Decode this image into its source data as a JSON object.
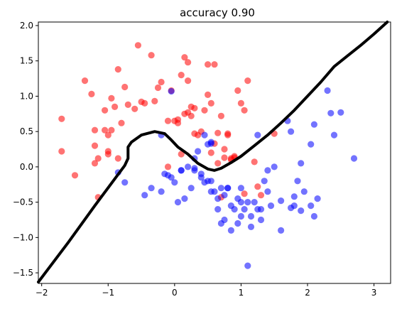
{
  "chart_data": {
    "type": "scatter",
    "title": "accuracy 0.90",
    "xlabel": "",
    "ylabel": "",
    "xlim": [
      -2.05,
      3.25
    ],
    "ylim": [
      -1.65,
      2.05
    ],
    "xticks": [
      -2,
      -1,
      0,
      1,
      2,
      3
    ],
    "yticks": [
      -1.5,
      -1.0,
      -0.5,
      0.0,
      0.5,
      1.0,
      1.5,
      2.0
    ],
    "xtick_labels": [
      "−2",
      "−1",
      "0",
      "1",
      "2",
      "3"
    ],
    "ytick_labels": [
      "−1.5",
      "−1.0",
      "−0.5",
      "0.0",
      "0.5",
      "1.0",
      "1.5",
      "2.0"
    ],
    "grid": false,
    "series": [
      {
        "color": "#ff0000",
        "x": [
          -1.7,
          -1.7,
          -1.5,
          -1.35,
          -1.25,
          -1.2,
          -1.2,
          -1.15,
          -1.05,
          -1.05,
          -1.0,
          -1.0,
          -0.95,
          -0.95,
          -0.9,
          -0.85,
          -0.8,
          -0.75,
          -0.7,
          -0.6,
          -0.55,
          -0.5,
          -0.45,
          -0.35,
          -0.3,
          -0.25,
          -0.2,
          -0.1,
          0.05,
          0.05,
          0.1,
          0.15,
          0.2,
          0.2,
          0.25,
          0.3,
          0.35,
          0.45,
          0.5,
          0.55,
          0.6,
          0.65,
          0.7,
          0.75,
          0.8,
          0.85,
          0.9,
          0.95,
          1.0,
          1.05,
          1.1,
          1.2,
          0.6,
          0.5,
          0.3,
          0.15,
          0.0,
          -0.05,
          0.65,
          0.75,
          0.85,
          0.9,
          -0.1,
          -1.15,
          -1.2,
          -1.0,
          -0.85,
          0.4,
          0.55,
          0.25,
          1.3,
          1.05,
          0.7,
          0.8,
          1.5,
          1.25,
          0.1,
          0.2
        ],
        "y": [
          0.68,
          0.22,
          -0.12,
          1.22,
          1.03,
          0.52,
          0.3,
          -0.43,
          0.8,
          0.52,
          0.45,
          0.22,
          0.97,
          0.52,
          0.85,
          1.38,
          0.62,
          1.13,
          0.88,
          0.82,
          1.72,
          0.92,
          0.9,
          1.58,
          0.93,
          1.12,
          1.2,
          0.65,
          0.67,
          0.62,
          1.3,
          1.55,
          1.48,
          1.22,
          0.85,
          0.47,
          0.45,
          0.8,
          1.02,
          0.9,
          0.33,
          0.05,
          0.72,
          0.13,
          0.45,
          0.1,
          0.15,
          1.08,
          0.9,
          0.8,
          1.22,
          0.07,
          1.45,
          1.45,
          0.83,
          0.75,
          0.65,
          1.08,
          0.48,
          0.25,
          0.12,
          0.13,
          0.0,
          0.12,
          0.05,
          0.18,
          0.12,
          0.5,
          0.2,
          0.72,
          -0.4,
          -0.38,
          -0.43,
          0.47,
          0.47,
          -0.28,
          0.18,
          0.77
        ]
      },
      {
        "color": "#0000ff",
        "x": [
          -0.2,
          -0.1,
          0.05,
          0.1,
          0.2,
          0.25,
          0.3,
          0.35,
          0.4,
          0.45,
          0.5,
          0.55,
          0.6,
          0.65,
          0.7,
          0.75,
          0.8,
          0.85,
          0.9,
          0.95,
          1.0,
          1.05,
          1.1,
          1.15,
          1.2,
          1.25,
          1.3,
          1.35,
          1.4,
          1.45,
          1.5,
          1.6,
          1.7,
          1.75,
          1.8,
          1.85,
          1.9,
          1.95,
          2.05,
          2.1,
          2.15,
          2.3,
          2.35,
          2.4,
          2.5,
          2.7,
          2.1,
          1.9,
          1.8,
          1.4,
          1.25,
          1.1,
          1.0,
          0.95,
          0.8,
          0.7,
          0.55,
          0.4,
          -0.85,
          -0.75,
          -0.45,
          -0.35,
          -0.2,
          -0.15,
          -0.05,
          0.0,
          0.1,
          0.15,
          0.3,
          0.45,
          0.55,
          0.65,
          0.75,
          0.85,
          1.0,
          1.15,
          1.3,
          0.55,
          -0.05,
          1.75,
          2.05,
          1.6,
          0.3,
          0.5
        ],
        "y": [
          0.45,
          -0.12,
          -0.5,
          -0.05,
          0.0,
          -0.3,
          -0.05,
          0.22,
          -0.15,
          0.45,
          -0.2,
          0.35,
          -0.35,
          -0.6,
          -0.8,
          -0.75,
          -0.3,
          -0.9,
          -0.6,
          -0.45,
          -0.3,
          -0.6,
          -0.5,
          -0.7,
          -0.5,
          -0.6,
          -0.75,
          -0.2,
          -0.35,
          -0.55,
          0.0,
          -0.9,
          0.65,
          0.5,
          -0.55,
          -0.2,
          0.05,
          -0.35,
          0.32,
          0.6,
          -0.45,
          1.08,
          0.76,
          0.45,
          0.77,
          0.12,
          -0.7,
          -0.62,
          -0.42,
          -0.05,
          0.45,
          -1.4,
          -0.5,
          -0.8,
          -0.3,
          -0.3,
          -0.2,
          -0.1,
          -0.08,
          -0.22,
          -0.4,
          -0.3,
          -0.35,
          -0.1,
          -0.15,
          -0.22,
          -0.05,
          -0.45,
          -0.02,
          -0.22,
          -0.35,
          -0.45,
          -0.4,
          -0.55,
          -0.7,
          -0.85,
          -0.6,
          0.33,
          1.07,
          -0.58,
          -0.55,
          -0.48,
          0.12,
          0.32
        ]
      }
    ],
    "boundary": {
      "color": "#000000",
      "x": [
        -2.05,
        -1.6,
        -1.2,
        -0.9,
        -0.75,
        -0.7,
        -0.7,
        -0.65,
        -0.5,
        -0.3,
        -0.15,
        -0.05,
        0.05,
        0.2,
        0.35,
        0.5,
        0.6,
        0.7,
        0.85,
        1.0,
        1.2,
        1.4,
        1.6,
        1.8,
        2.0,
        2.2,
        2.4,
        2.6,
        2.8,
        3.0,
        3.2
      ],
      "y": [
        -1.63,
        -1.07,
        -0.55,
        -0.17,
        0.02,
        0.12,
        0.28,
        0.35,
        0.45,
        0.5,
        0.47,
        0.38,
        0.28,
        0.18,
        0.05,
        -0.03,
        -0.05,
        -0.02,
        0.06,
        0.15,
        0.3,
        0.45,
        0.62,
        0.8,
        1.0,
        1.2,
        1.42,
        1.57,
        1.72,
        1.88,
        2.05
      ]
    }
  }
}
